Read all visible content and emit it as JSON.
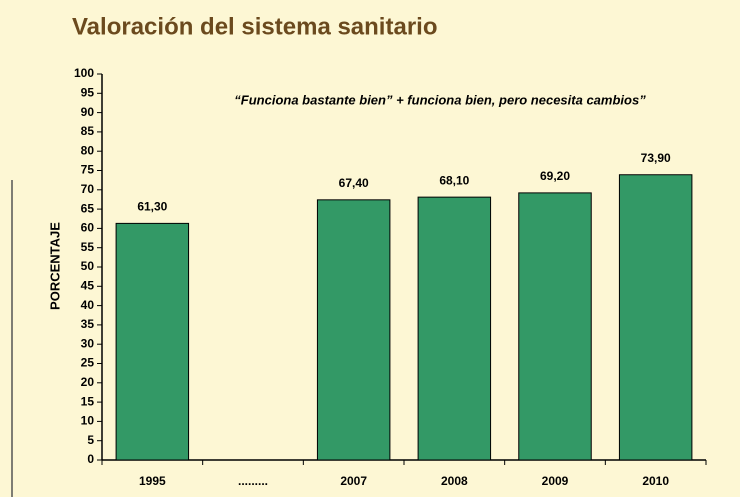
{
  "chart_data": {
    "type": "bar",
    "title": "Valoración del sistema sanitario",
    "subtitle": "“Funciona bastante bien” + funciona bien, pero necesita cambios”",
    "y_label": "PORCENTAJE",
    "categories": [
      "1995",
      ".........",
      "2007",
      "2008",
      "2009",
      "2010"
    ],
    "values": [
      61.3,
      null,
      67.4,
      68.1,
      69.2,
      73.9
    ],
    "value_labels": [
      "61,30",
      null,
      "67,40",
      "68,10",
      "69,20",
      "73,90"
    ],
    "color": "#339966",
    "ylim": [
      0,
      100
    ],
    "yticks": [
      0,
      5,
      10,
      15,
      20,
      25,
      30,
      35,
      40,
      45,
      50,
      55,
      60,
      65,
      70,
      75,
      80,
      85,
      90,
      95,
      100
    ]
  }
}
